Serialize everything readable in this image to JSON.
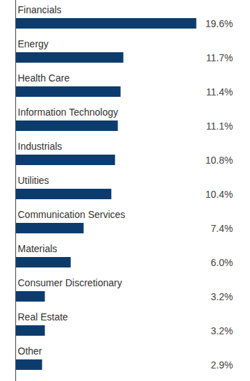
{
  "chart_data": {
    "type": "bar",
    "orientation": "horizontal",
    "categories": [
      "Financials",
      "Energy",
      "Health Care",
      "Information Technology",
      "Industrials",
      "Utilities",
      "Communication Services",
      "Materials",
      "Consumer Discretionary",
      "Real Estate",
      "Other"
    ],
    "values": [
      19.6,
      11.7,
      11.4,
      11.1,
      10.8,
      10.4,
      7.4,
      6.0,
      3.2,
      3.2,
      2.9
    ],
    "value_labels": [
      "19.6%",
      "11.7%",
      "11.4%",
      "11.1%",
      "10.8%",
      "10.4%",
      "7.4%",
      "6.0%",
      "3.2%",
      "3.2%",
      "2.9%"
    ],
    "color": "#0c3c6e",
    "xlim": [
      0,
      20
    ],
    "data_labels": true,
    "tick_labels": "y",
    "grid": false
  }
}
